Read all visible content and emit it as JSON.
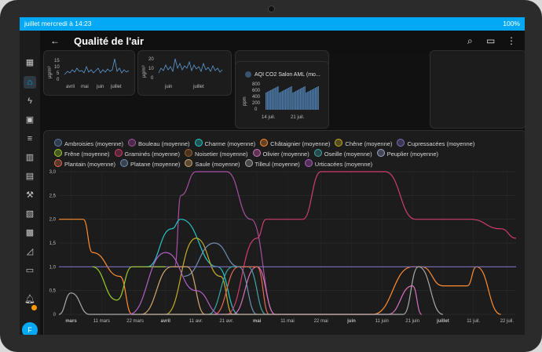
{
  "status": {
    "left": "juillet mercredi à 14:23",
    "right": "100%"
  },
  "header": {
    "title": "Qualité de l'air"
  },
  "small_charts": {
    "a": {
      "ylabel": "µg/m³",
      "yticks": [
        "15",
        "10",
        "5",
        "0"
      ],
      "xticks": [
        "avril",
        "mai",
        "juin",
        "juillet"
      ]
    },
    "b": {
      "ylabel": "µg/m³",
      "yticks": [
        "20",
        "10",
        "0"
      ],
      "xticks": [
        "juin",
        "juillet"
      ]
    },
    "c": {
      "title": "AQI CO2 Salon AML (mo...",
      "ylabel": "ppm",
      "yticks": [
        "800",
        "600",
        "400",
        "200",
        "0"
      ],
      "xticks": [
        "14 juil.",
        "21 juil."
      ]
    }
  },
  "colors": {
    "accent": "#03a9f4",
    "badge": "#ff9800",
    "background": "#111111"
  },
  "chart_data": {
    "type": "line",
    "ylim": [
      0,
      3
    ],
    "yticks": [
      "0",
      "0,5",
      "1,0",
      "1,5",
      "2,0",
      "2,5",
      "3,0"
    ],
    "x_range": [
      "2024-02-26",
      "2024-07-25"
    ],
    "xticks": [
      {
        "label": "mars",
        "date": "2024-03-01",
        "bold": true
      },
      {
        "label": "11 mars",
        "date": "2024-03-11",
        "bold": false
      },
      {
        "label": "22 mars",
        "date": "2024-03-22",
        "bold": false
      },
      {
        "label": "avril",
        "date": "2024-04-01",
        "bold": true
      },
      {
        "label": "11 avr.",
        "date": "2024-04-11",
        "bold": false
      },
      {
        "label": "21 avr.",
        "date": "2024-04-21",
        "bold": false
      },
      {
        "label": "mai",
        "date": "2024-05-01",
        "bold": true
      },
      {
        "label": "11 mai",
        "date": "2024-05-11",
        "bold": false
      },
      {
        "label": "22 mai",
        "date": "2024-05-22",
        "bold": false
      },
      {
        "label": "juin",
        "date": "2024-06-01",
        "bold": true
      },
      {
        "label": "11 juin",
        "date": "2024-06-11",
        "bold": false
      },
      {
        "label": "21 juin",
        "date": "2024-06-21",
        "bold": false
      },
      {
        "label": "juillet",
        "date": "2024-07-01",
        "bold": true
      },
      {
        "label": "11 juil.",
        "date": "2024-07-11",
        "bold": false
      },
      {
        "label": "22 juil.",
        "date": "2024-07-22",
        "bold": false
      }
    ],
    "series": [
      {
        "name": "Ambroisies (moyenne)",
        "color": "#5a7fa8",
        "points": []
      },
      {
        "name": "Bouleau (moyenne)",
        "color": "#a94fa3",
        "points": [
          [
            "2024-04-04",
            1
          ],
          [
            "2024-04-06",
            2.5
          ],
          [
            "2024-04-11",
            3
          ],
          [
            "2024-04-21",
            3
          ],
          [
            "2024-04-29",
            2
          ],
          [
            "2024-05-07",
            0
          ]
        ]
      },
      {
        "name": "Charme (moyenne)",
        "color": "#26c6c6",
        "points": [
          [
            "2024-03-26",
            1
          ],
          [
            "2024-04-03",
            1.8
          ],
          [
            "2024-04-06",
            2
          ],
          [
            "2024-04-18",
            1
          ],
          [
            "2024-04-25",
            0
          ]
        ]
      },
      {
        "name": "Châtaignier (moyenne)",
        "color": "#ff8c2e",
        "points": [
          [
            "2024-02-26",
            2
          ],
          [
            "2024-03-05",
            2
          ],
          [
            "2024-03-08",
            1.3
          ],
          [
            "2024-03-17",
            0.8
          ],
          [
            "2024-03-21",
            0
          ],
          [
            "2024-06-08",
            0
          ],
          [
            "2024-06-21",
            1
          ],
          [
            "2024-06-24",
            1
          ],
          [
            "2024-07-01",
            0.6
          ],
          [
            "2024-07-09",
            0.6
          ],
          [
            "2024-07-12",
            1
          ],
          [
            "2024-07-20",
            0
          ]
        ]
      },
      {
        "name": "Chêne (moyenne)",
        "color": "#c6ab25",
        "points": [
          [
            "2024-04-01",
            0
          ],
          [
            "2024-04-11",
            1.6
          ],
          [
            "2024-04-19",
            0.8
          ],
          [
            "2024-04-23",
            0
          ]
        ]
      },
      {
        "name": "Cupressacées (moyenne)",
        "color": "#7c6fbd",
        "points": [
          [
            "2024-02-26",
            1
          ],
          [
            "2024-07-25",
            1
          ]
        ]
      },
      {
        "name": "Frêne (moyenne)",
        "color": "#9cce2a",
        "points": [
          [
            "2024-03-08",
            1
          ],
          [
            "2024-03-16",
            0.3
          ],
          [
            "2024-03-21",
            1
          ],
          [
            "2024-04-01",
            1
          ]
        ]
      },
      {
        "name": "Graminés (moyenne)",
        "color": "#cf3d6f",
        "points": [
          [
            "2024-04-21",
            0
          ],
          [
            "2024-05-01",
            1.6
          ],
          [
            "2024-05-04",
            2
          ],
          [
            "2024-05-16",
            2
          ],
          [
            "2024-05-22",
            3
          ],
          [
            "2024-06-12",
            3
          ],
          [
            "2024-06-22",
            2
          ],
          [
            "2024-07-04",
            2
          ],
          [
            "2024-07-10",
            2
          ],
          [
            "2024-07-20",
            1.8
          ],
          [
            "2024-07-25",
            1.6
          ]
        ]
      },
      {
        "name": "Noisetier (moyenne)",
        "color": "#a0642a",
        "points": []
      },
      {
        "name": "Olivier (moyenne)",
        "color": "#d86fbd",
        "points": [
          [
            "2024-04-23",
            0
          ],
          [
            "2024-05-01",
            1
          ],
          [
            "2024-05-07",
            0
          ],
          [
            "2024-06-13",
            0
          ],
          [
            "2024-06-21",
            0.6
          ],
          [
            "2024-06-24",
            0
          ]
        ]
      },
      {
        "name": "Oseille (moyenne)",
        "color": "#3fa5a5",
        "points": [
          [
            "2024-04-15",
            0
          ],
          [
            "2024-04-23",
            1
          ],
          [
            "2024-04-28",
            1
          ],
          [
            "2024-05-04",
            0
          ]
        ]
      },
      {
        "name": "Peuplier (moyenne)",
        "color": "#9aa4c8",
        "points": []
      },
      {
        "name": "Plantain (moyenne)",
        "color": "#e36b4f",
        "points": [
          [
            "2024-04-17",
            0
          ],
          [
            "2024-04-25",
            1
          ],
          [
            "2024-05-01",
            1
          ],
          [
            "2024-05-05",
            0
          ]
        ]
      },
      {
        "name": "Platane (moyenne)",
        "color": "#6f8fb3",
        "points": [
          [
            "2024-04-07",
            0.8
          ],
          [
            "2024-04-17",
            1.5
          ],
          [
            "2024-04-25",
            1
          ],
          [
            "2024-05-01",
            0
          ]
        ]
      },
      {
        "name": "Saule (moyenne)",
        "color": "#d4a86a",
        "points": [
          [
            "2024-03-24",
            0
          ],
          [
            "2024-04-03",
            1
          ],
          [
            "2024-04-08",
            1
          ],
          [
            "2024-04-14",
            0
          ]
        ]
      },
      {
        "name": "Tilleul (moyenne)",
        "color": "#aaaaaa",
        "points": [
          [
            "2024-02-26",
            0
          ],
          [
            "2024-03-01",
            0.45
          ],
          [
            "2024-03-07",
            0
          ],
          [
            "2024-06-18",
            0
          ],
          [
            "2024-06-23",
            1
          ],
          [
            "2024-07-01",
            0
          ]
        ]
      },
      {
        "name": "Urticacées (moyenne)",
        "color": "#b05fc9",
        "points": [
          [
            "2024-03-20",
            0
          ],
          [
            "2024-04-01",
            1.3
          ],
          [
            "2024-04-11",
            0.5
          ],
          [
            "2024-04-19",
            0
          ]
        ]
      }
    ]
  }
}
